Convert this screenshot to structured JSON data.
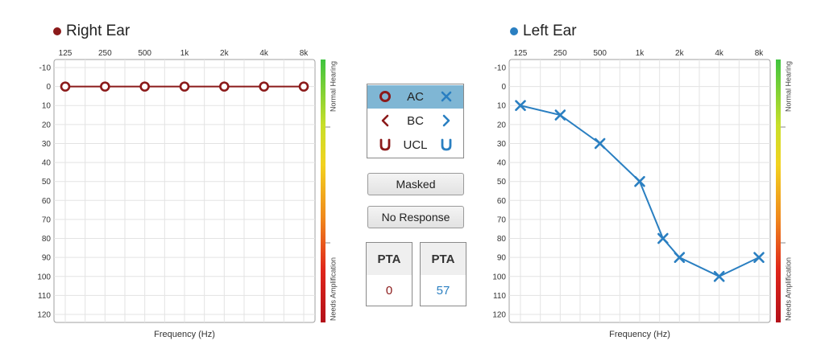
{
  "right_ear": {
    "title": "Right Ear",
    "color": "#8b1a1a"
  },
  "left_ear": {
    "title": "Left Ear",
    "color": "#2a7fc1"
  },
  "legend": {
    "rows": [
      {
        "label": "AC",
        "right_symbol": "circle-icon",
        "left_symbol": "cross-icon",
        "selected": true
      },
      {
        "label": "BC",
        "right_symbol": "chevron-left-icon",
        "left_symbol": "chevron-right-icon",
        "selected": false
      },
      {
        "label": "UCL",
        "right_symbol": "u-shape-icon",
        "left_symbol": "u-shape-icon",
        "selected": false
      }
    ]
  },
  "buttons": {
    "masked": "Masked",
    "no_response": "No Response"
  },
  "pta": {
    "right": {
      "label": "PTA",
      "value": "0"
    },
    "left": {
      "label": "PTA",
      "value": "57"
    }
  },
  "chart_data": [
    {
      "type": "line",
      "title": "Right Ear",
      "xlabel": "Frequency (Hz)",
      "x_tick_labels": [
        "125",
        "250",
        "500",
        "1k",
        "2k",
        "4k",
        "8k"
      ],
      "x_ticks": [
        125,
        250,
        500,
        1000,
        2000,
        4000,
        8000
      ],
      "x_scale": "log",
      "y_tick_labels": [
        "-10",
        "0",
        "10",
        "20",
        "30",
        "40",
        "50",
        "60",
        "70",
        "80",
        "90",
        "100",
        "110",
        "120"
      ],
      "ylim": [
        -10,
        120
      ],
      "y_inverted": true,
      "color_bar_labels": {
        "top": "Normal Hearing",
        "bottom": "Needs Amplification"
      },
      "grid": true,
      "series": [
        {
          "marker": "circle",
          "color": "#8b1a1a",
          "x": [
            125,
            250,
            500,
            1000,
            2000,
            4000,
            8000
          ],
          "y": [
            0,
            0,
            0,
            0,
            0,
            0,
            0
          ]
        }
      ]
    },
    {
      "type": "line",
      "title": "Left Ear",
      "xlabel": "Frequency (Hz)",
      "x_tick_labels": [
        "125",
        "250",
        "500",
        "1k",
        "2k",
        "4k",
        "8k"
      ],
      "x_ticks": [
        125,
        250,
        500,
        1000,
        2000,
        4000,
        8000
      ],
      "x_scale": "log",
      "y_tick_labels": [
        "-10",
        "0",
        "10",
        "20",
        "30",
        "40",
        "50",
        "60",
        "70",
        "80",
        "90",
        "100",
        "110",
        "120"
      ],
      "ylim": [
        -10,
        120
      ],
      "y_inverted": true,
      "color_bar_labels": {
        "top": "Normal Hearing",
        "bottom": "Needs Amplification"
      },
      "grid": true,
      "series": [
        {
          "marker": "cross",
          "color": "#2a7fc1",
          "x": [
            125,
            250,
            500,
            1000,
            1500,
            2000,
            4000,
            8000
          ],
          "y": [
            10,
            15,
            30,
            50,
            80,
            90,
            100,
            90
          ]
        }
      ]
    }
  ]
}
